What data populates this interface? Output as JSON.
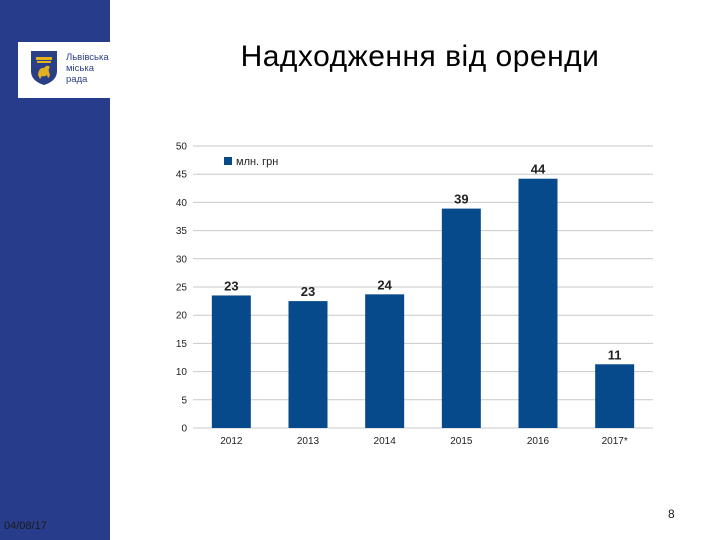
{
  "slide": {
    "title": "Надходження від оренди",
    "date": "04/08/17",
    "page_number": "8"
  },
  "logo": {
    "line1": "Львівська",
    "line2": "міська",
    "line3": "рада",
    "colors": {
      "blue": "#2b3f86",
      "gold": "#e1b11f"
    }
  },
  "colors": {
    "sidebar": "#283c8c",
    "bar": "#074a8c",
    "grid": "#c9c9c9"
  },
  "chart_data": {
    "type": "bar",
    "categories": [
      "2012",
      "2013",
      "2014",
      "2015",
      "2016",
      "2017*"
    ],
    "series": [
      {
        "name": "млн. грн",
        "values": [
          23.5,
          22.5,
          23.7,
          38.9,
          44.2,
          11.3
        ]
      }
    ],
    "data_labels": [
      "23",
      "23",
      "24",
      "39",
      "44",
      "11"
    ],
    "title": "",
    "xlabel": "",
    "ylabel": "",
    "ylim": [
      0,
      50
    ],
    "yticks": [
      0,
      5,
      10,
      15,
      20,
      25,
      30,
      35,
      40,
      45,
      50
    ],
    "grid": true,
    "legend": "top-left"
  }
}
